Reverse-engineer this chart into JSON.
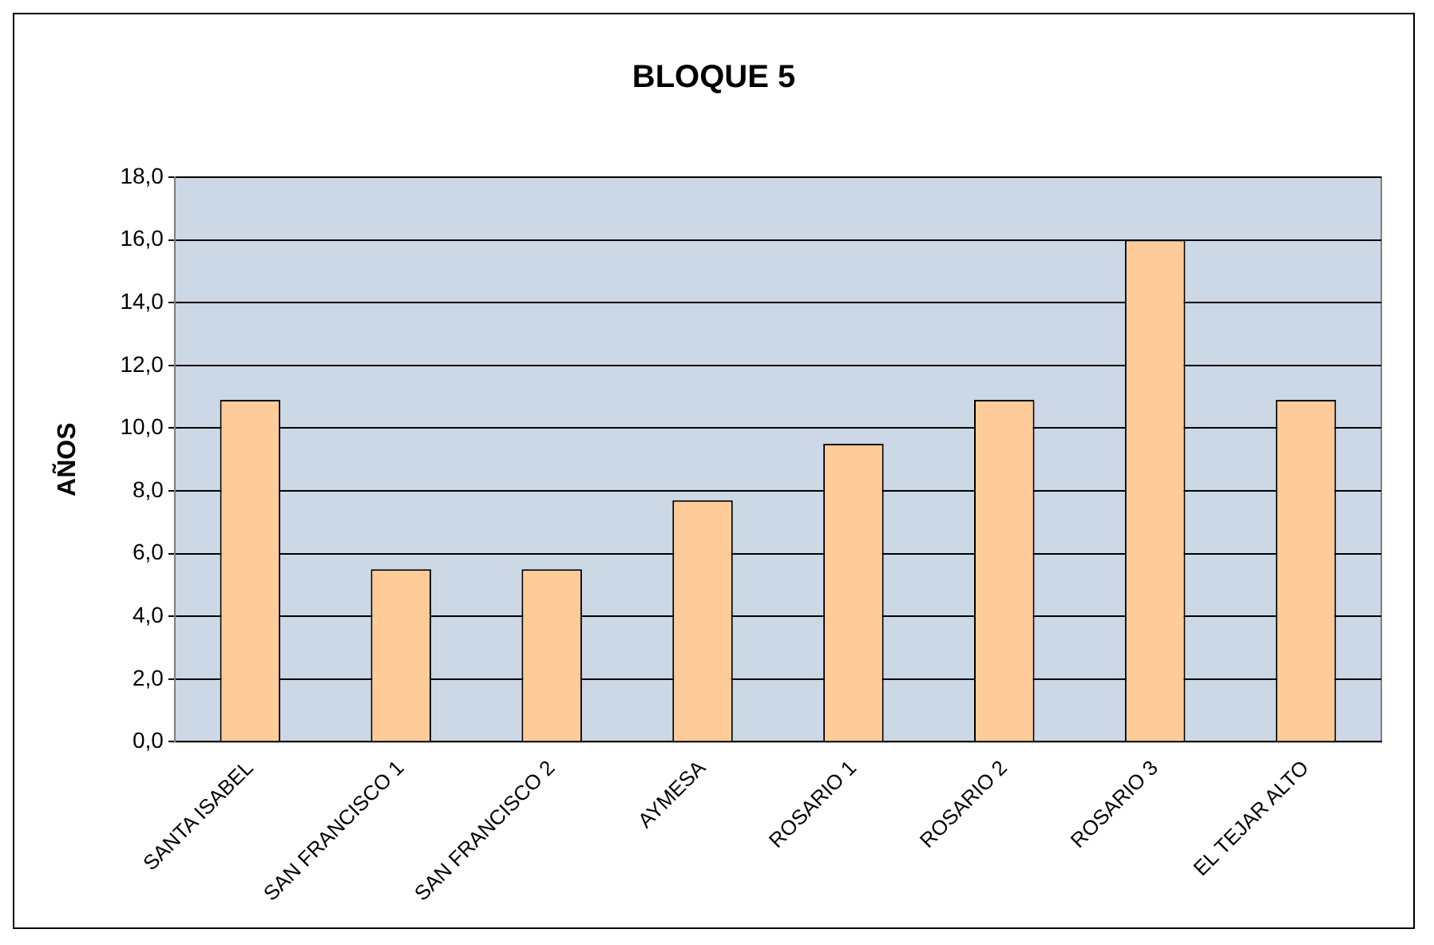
{
  "chart_data": {
    "type": "bar",
    "title": "BLOQUE 5",
    "ylabel": "AÑOS",
    "categories": [
      "SANTA ISABEL",
      "SAN FRANCISCO 1",
      "SAN FRANCISCO 2",
      "AYMESA",
      "ROSARIO 1",
      "ROSARIO 2",
      "ROSARIO 3",
      "EL TEJAR ALTO"
    ],
    "values": [
      10.9,
      5.5,
      5.5,
      7.7,
      9.5,
      10.9,
      16.0,
      10.9
    ],
    "color": "#ffcc99",
    "ylim": [
      0,
      18
    ],
    "yticks": [
      {
        "value": 0,
        "label": "0,0"
      },
      {
        "value": 2,
        "label": "2,0"
      },
      {
        "value": 4,
        "label": "4,0"
      },
      {
        "value": 6,
        "label": "6,0"
      },
      {
        "value": 8,
        "label": "8,0"
      },
      {
        "value": 10,
        "label": "10,0"
      },
      {
        "value": 12,
        "label": "12,0"
      },
      {
        "value": 14,
        "label": "14,0"
      },
      {
        "value": 16,
        "label": "16,0"
      },
      {
        "value": 18,
        "label": "18,0"
      }
    ],
    "grid": "y",
    "legend": false
  }
}
